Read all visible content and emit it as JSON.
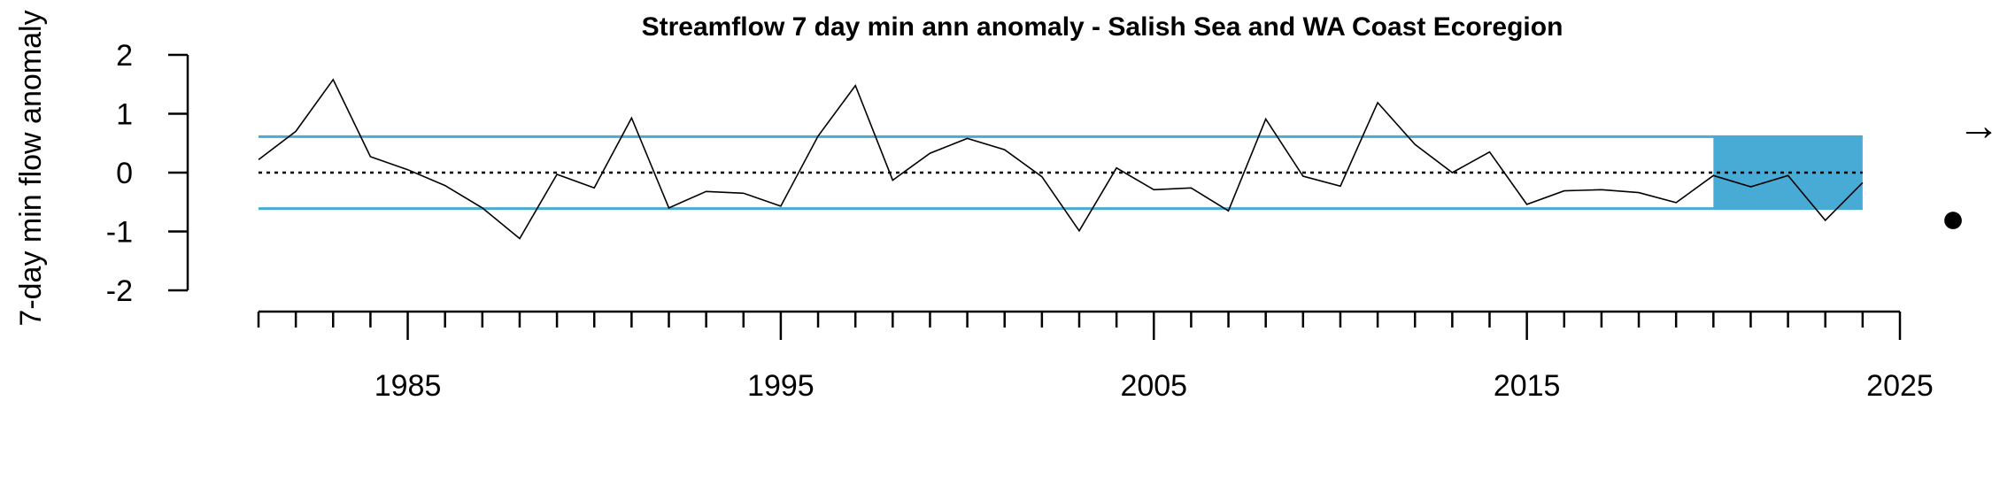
{
  "chart_data": {
    "type": "line",
    "title": "Streamflow 7 day min ann anomaly - Salish Sea and WA Coast Ecoregion",
    "xlabel": "",
    "ylabel": "7-day min flow anomaly",
    "xlim": [
      1981,
      2025
    ],
    "ylim": [
      -2,
      2
    ],
    "x_major_ticks": [
      1985,
      1995,
      2005,
      2015,
      2025
    ],
    "y_ticks": [
      2,
      1,
      0,
      -1,
      -2
    ],
    "reference_lines": {
      "mean": 0,
      "upper": 0.61,
      "lower": -0.61
    },
    "highlight_range": [
      2020,
      2024
    ],
    "grid": false,
    "series": [
      {
        "x": [
          1981,
          1982,
          1983,
          1984,
          1985,
          1986,
          1987,
          1988,
          1989,
          1990,
          1991,
          1992,
          1993,
          1994,
          1995,
          1996,
          1997,
          1998,
          1999,
          2000,
          2001,
          2002,
          2003,
          2004,
          2005,
          2006,
          2007,
          2008,
          2009,
          2010,
          2011,
          2012,
          2013,
          2014,
          2015,
          2016,
          2017,
          2018,
          2019,
          2020,
          2021,
          2022,
          2023,
          2024
        ],
        "values": [
          0.22,
          0.7,
          1.58,
          0.27,
          0.05,
          -0.22,
          -0.6,
          -1.12,
          -0.03,
          -0.26,
          0.93,
          -0.6,
          -0.32,
          -0.35,
          -0.57,
          0.62,
          1.48,
          -0.13,
          0.33,
          0.58,
          0.39,
          -0.07,
          -0.99,
          0.08,
          -0.29,
          -0.26,
          -0.65,
          0.91,
          -0.06,
          -0.23,
          1.19,
          0.48,
          0.0,
          0.35,
          -0.54,
          -0.31,
          -0.29,
          -0.34,
          -0.51,
          -0.05,
          -0.24,
          -0.05,
          -0.81,
          -0.17
        ]
      }
    ],
    "symbols": {
      "trend": "→",
      "status": "●"
    },
    "colors": {
      "band": "#4aabd1",
      "highlight": "#47abd5",
      "line": "#000000"
    }
  }
}
